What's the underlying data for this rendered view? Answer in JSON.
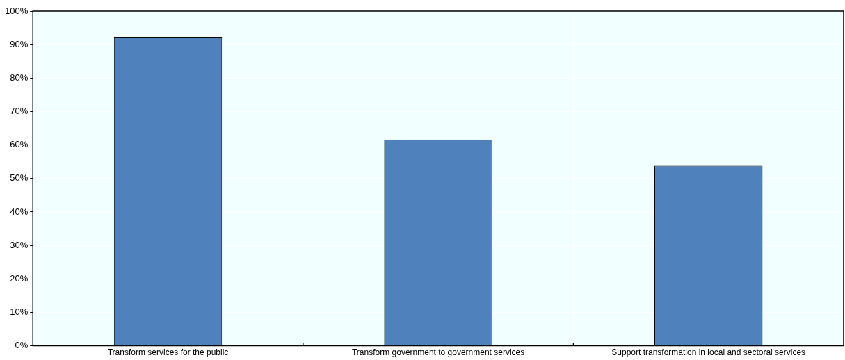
{
  "chart_data": {
    "type": "bar",
    "categories": [
      "Transform services for the public",
      "Transform government to government services",
      "Support transformation in local and sectoral services"
    ],
    "values": [
      92.3,
      61.6,
      53.8
    ],
    "color": "#4f81bd",
    "ylim": [
      0,
      100
    ],
    "yticks": [
      {
        "value": 0,
        "label": "0%"
      },
      {
        "value": 10,
        "label": "10%"
      },
      {
        "value": 20,
        "label": "20%"
      },
      {
        "value": 30,
        "label": "30%"
      },
      {
        "value": 40,
        "label": "40%"
      },
      {
        "value": 50,
        "label": "50%"
      },
      {
        "value": 60,
        "label": "60%"
      },
      {
        "value": 70,
        "label": "70%"
      },
      {
        "value": 80,
        "label": "80%"
      },
      {
        "value": 90,
        "label": "90%"
      },
      {
        "value": 100,
        "label": "100%"
      }
    ],
    "grid": true,
    "legend": false
  }
}
